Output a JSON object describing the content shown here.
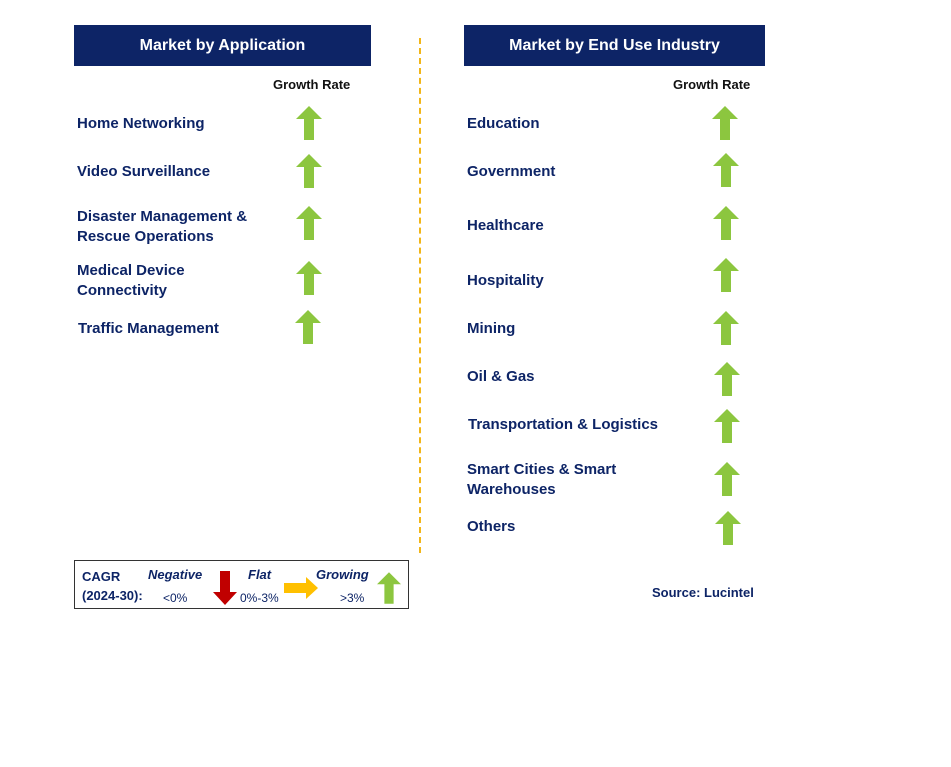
{
  "left_panel": {
    "title": "Market by Application",
    "column_header": "Growth Rate",
    "items": [
      {
        "label": "Home Networking",
        "trend": "growing"
      },
      {
        "label": "Video Surveillance",
        "trend": "growing"
      },
      {
        "label": "Disaster Management & Rescue Operations",
        "trend": "growing"
      },
      {
        "label": "Medical Device Connectivity",
        "trend": "growing"
      },
      {
        "label": "Traffic Management",
        "trend": "growing"
      }
    ]
  },
  "right_panel": {
    "title": "Market by End Use Industry",
    "column_header": "Growth Rate",
    "items": [
      {
        "label": "Education",
        "trend": "growing"
      },
      {
        "label": "Government",
        "trend": "growing"
      },
      {
        "label": "Healthcare",
        "trend": "growing"
      },
      {
        "label": "Hospitality",
        "trend": "growing"
      },
      {
        "label": "Mining",
        "trend": "growing"
      },
      {
        "label": "Oil & Gas",
        "trend": "growing"
      },
      {
        "label": "Transportation & Logistics",
        "trend": "growing"
      },
      {
        "label": "Smart Cities & Smart Warehouses",
        "trend": "growing"
      },
      {
        "label": "Others",
        "trend": "growing"
      }
    ]
  },
  "legend": {
    "cagr_line1": "CAGR",
    "cagr_line2": "(2024-30):",
    "negative_label": "Negative",
    "negative_range": "<0%",
    "flat_label": "Flat",
    "flat_range": "0%-3%",
    "growing_label": "Growing",
    "growing_range": ">3%"
  },
  "source": "Source: Lucintel",
  "colors": {
    "header_bg": "#0d2466",
    "label_text": "#0d2466",
    "growing_arrow": "#8cc63f",
    "flat_arrow": "#ffc000",
    "negative_arrow": "#c00000",
    "divider": "#f2b619"
  }
}
